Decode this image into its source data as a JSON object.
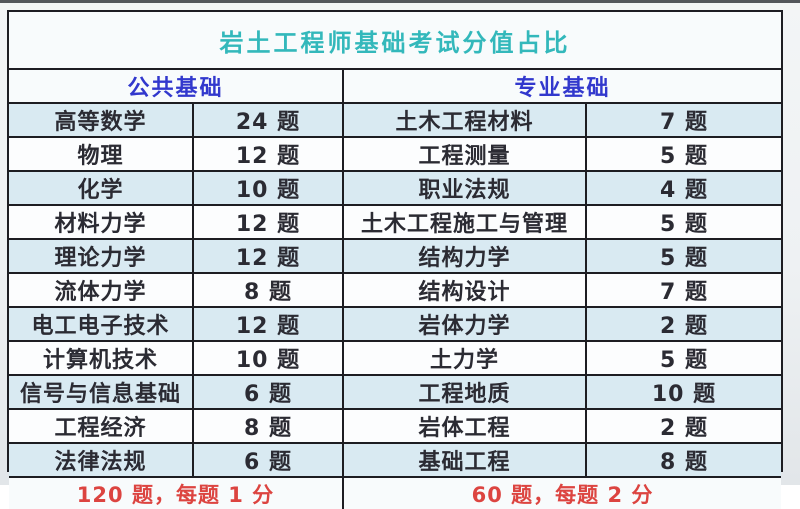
{
  "chart_data": {
    "type": "table",
    "title": "岩土工程师基础考试分值占比",
    "sections": [
      {
        "header": "公共基础",
        "rows": [
          {
            "subject": "高等数学",
            "count": "24 题"
          },
          {
            "subject": "物理",
            "count": "12 题"
          },
          {
            "subject": "化学",
            "count": "10 题"
          },
          {
            "subject": "材料力学",
            "count": "12 题"
          },
          {
            "subject": "理论力学",
            "count": "12 题"
          },
          {
            "subject": "流体力学",
            "count": "8 题"
          },
          {
            "subject": "电工电子技术",
            "count": "12 题"
          },
          {
            "subject": "计算机技术",
            "count": "10 题"
          },
          {
            "subject": "信号与信息基础",
            "count": "6 题"
          },
          {
            "subject": "工程经济",
            "count": "8 题"
          },
          {
            "subject": "法律法规",
            "count": "6 题"
          }
        ],
        "footer": "120 题，每题 1 分"
      },
      {
        "header": "专业基础",
        "rows": [
          {
            "subject": "土木工程材料",
            "count": "7 题"
          },
          {
            "subject": "工程测量",
            "count": "5 题"
          },
          {
            "subject": "职业法规",
            "count": "4 题"
          },
          {
            "subject": "土木工程施工与管理",
            "count": "5 题"
          },
          {
            "subject": "结构力学",
            "count": "5 题"
          },
          {
            "subject": "结构设计",
            "count": "7 题"
          },
          {
            "subject": "岩体力学",
            "count": "2 题"
          },
          {
            "subject": "土力学",
            "count": "5 题"
          },
          {
            "subject": "工程地质",
            "count": "10 题"
          },
          {
            "subject": "岩体工程",
            "count": "2 题"
          },
          {
            "subject": "基础工程",
            "count": "8 题"
          }
        ],
        "footer": "60 题，每题 2 分"
      }
    ]
  },
  "colors": {
    "title_text": "#33b8bb",
    "header_text": "#3238cd",
    "body_text": "#2b2b33",
    "footer_text": "#dc4440",
    "row_stripe": "#d9eaf2",
    "row_plain": "#fcfdfe",
    "table_border": "#1d1d22"
  }
}
